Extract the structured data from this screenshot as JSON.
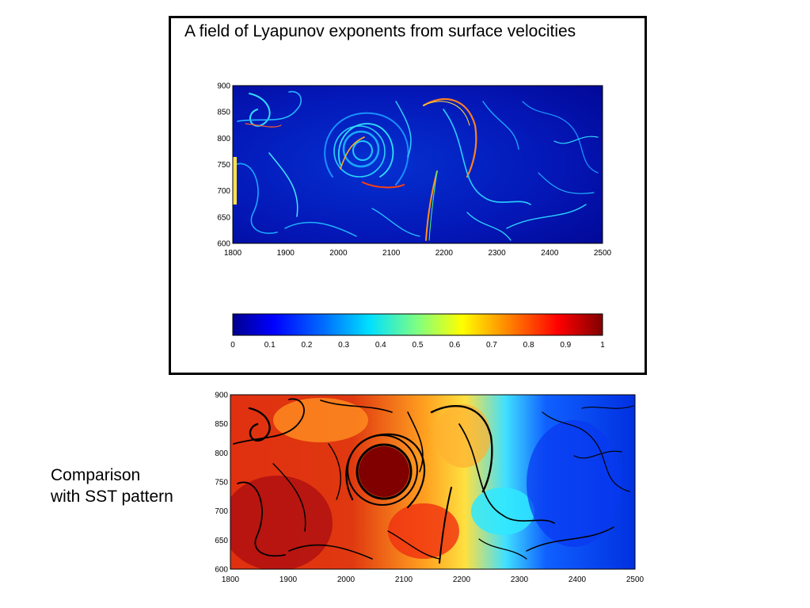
{
  "slide": {
    "title": "A field of Lyapunov exponents from surface velocities",
    "caption_lines": [
      "Comparison",
      "with SST pattern"
    ]
  },
  "top_plot": {
    "x_ticks": [
      "1800",
      "1900",
      "2000",
      "2100",
      "2200",
      "2300",
      "2400",
      "2500"
    ],
    "y_ticks": [
      "900",
      "850",
      "800",
      "750",
      "700",
      "650",
      "600"
    ],
    "colormap": "jet"
  },
  "colorbar": {
    "ticks": [
      "0",
      "0.1",
      "0.2",
      "0.3",
      "0.4",
      "0.5",
      "0.6",
      "0.7",
      "0.8",
      "0.9",
      "1"
    ],
    "range": [
      0,
      1
    ],
    "colors": [
      "#00008f",
      "#0000ff",
      "#0080ff",
      "#00ffff",
      "#80ff80",
      "#ffff00",
      "#ff8000",
      "#ff0000",
      "#800000"
    ]
  },
  "bottom_plot": {
    "x_ticks": [
      "1800",
      "1900",
      "2000",
      "2100",
      "2200",
      "2300",
      "2400",
      "2500"
    ],
    "y_ticks": [
      "900",
      "850",
      "800",
      "750",
      "700",
      "650",
      "600"
    ],
    "overlay": "black filaments over SST field"
  }
}
